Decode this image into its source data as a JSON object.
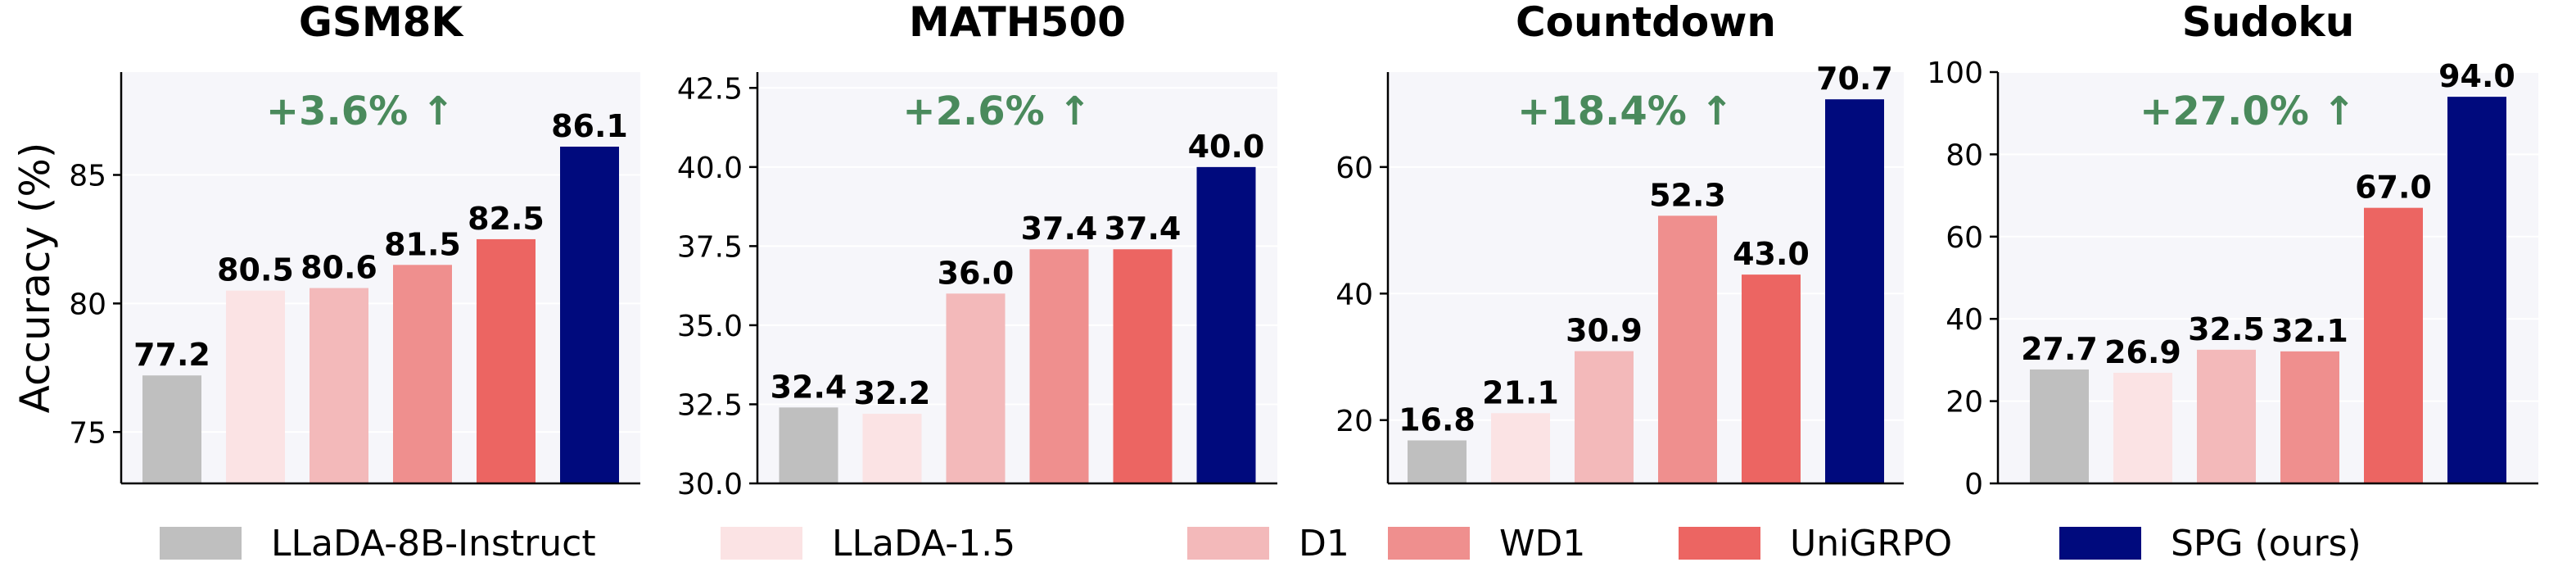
{
  "ylabel": "Accuracy (%)",
  "colors": {
    "LLaDA-8B-Instruct": "#bfbfbf",
    "LLaDA-1.5": "#fbe3e4",
    "D1": "#f3b9ba",
    "WD1": "#ef8f8e",
    "UniGRPO": "#ec6562",
    "SPG (ours)": "#000a7d",
    "gain": "#4a8a5c",
    "panel_bg": "#f6f6fa"
  },
  "legend": [
    "LLaDA-8B-Instruct",
    "LLaDA-1.5",
    "D1",
    "WD1",
    "UniGRPO",
    "SPG (ours)"
  ],
  "chart_data": [
    {
      "type": "bar",
      "title": "GSM8K",
      "categories": [
        "LLaDA-8B-Instruct",
        "LLaDA-1.5",
        "D1",
        "WD1",
        "UniGRPO",
        "SPG (ours)"
      ],
      "values": [
        77.2,
        80.5,
        80.6,
        81.5,
        82.5,
        86.1
      ],
      "value_labels": [
        "77.2",
        "80.5",
        "80.6",
        "81.5",
        "82.5",
        "86.1"
      ],
      "annotation": "+3.6% ↑",
      "ylim": [
        73,
        89
      ],
      "yticks": [
        75,
        80,
        85
      ],
      "ytick_labels": [
        "75",
        "80",
        "85"
      ],
      "ylabel": "Accuracy (%)"
    },
    {
      "type": "bar",
      "title": "MATH500",
      "categories": [
        "LLaDA-8B-Instruct",
        "LLaDA-1.5",
        "D1",
        "WD1",
        "UniGRPO",
        "SPG (ours)"
      ],
      "values": [
        32.4,
        32.2,
        36.0,
        37.4,
        37.4,
        40.0
      ],
      "value_labels": [
        "32.4",
        "32.2",
        "36.0",
        "37.4",
        "37.4",
        "40.0"
      ],
      "annotation": "+2.6% ↑",
      "ylim": [
        30,
        43
      ],
      "yticks": [
        30,
        32.5,
        35,
        37.5,
        40,
        42.5
      ],
      "ytick_labels": [
        "30.0",
        "32.5",
        "35.0",
        "37.5",
        "40.0",
        "42.5"
      ],
      "ylabel": ""
    },
    {
      "type": "bar",
      "title": "Countdown",
      "categories": [
        "LLaDA-8B-Instruct",
        "LLaDA-1.5",
        "D1",
        "WD1",
        "UniGRPO",
        "SPG (ours)"
      ],
      "values": [
        16.8,
        21.1,
        30.9,
        52.3,
        43.0,
        70.7
      ],
      "value_labels": [
        "16.8",
        "21.1",
        "30.9",
        "52.3",
        "43.0",
        "70.7"
      ],
      "annotation": "+18.4% ↑",
      "ylim": [
        10,
        75
      ],
      "yticks": [
        20,
        40,
        60
      ],
      "ytick_labels": [
        "20",
        "40",
        "60"
      ],
      "ylabel": ""
    },
    {
      "type": "bar",
      "title": "Sudoku",
      "categories": [
        "LLaDA-8B-Instruct",
        "LLaDA-1.5",
        "D1",
        "WD1",
        "UniGRPO",
        "SPG (ours)"
      ],
      "values": [
        27.7,
        26.9,
        32.5,
        32.1,
        67.0,
        94.0
      ],
      "value_labels": [
        "27.7",
        "26.9",
        "32.5",
        "32.1",
        "67.0",
        "94.0"
      ],
      "annotation": "+27.0% ↑",
      "ylim": [
        0,
        100
      ],
      "yticks": [
        0,
        20,
        40,
        60,
        80,
        100
      ],
      "ytick_labels": [
        "0",
        "20",
        "40",
        "60",
        "80",
        "100"
      ],
      "ylabel": ""
    }
  ]
}
